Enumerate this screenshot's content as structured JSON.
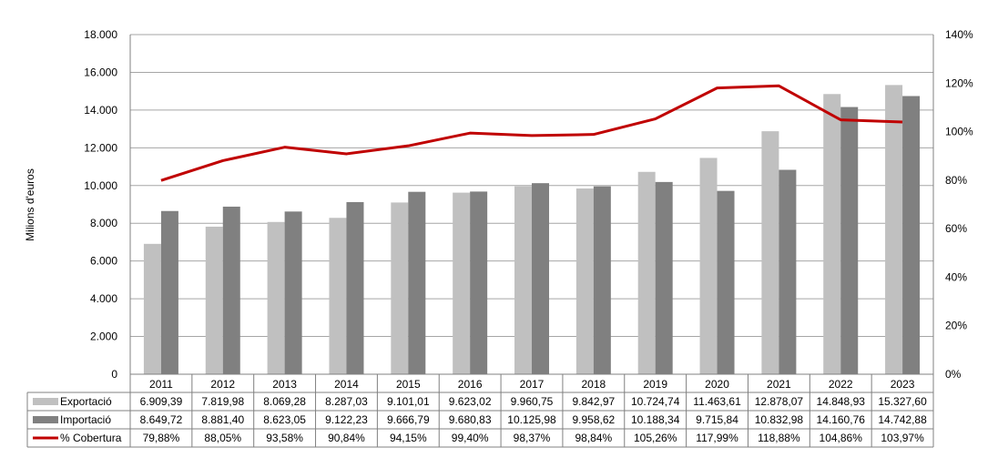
{
  "chart_data": {
    "type": "bar",
    "ylabel": "Milions d'euros",
    "ylim": [
      0,
      18000
    ],
    "y_ticks": [
      "0",
      "2.000",
      "4.000",
      "6.000",
      "8.000",
      "10.000",
      "12.000",
      "14.000",
      "16.000",
      "18.000"
    ],
    "y2lim": [
      0,
      140
    ],
    "y2_ticks": [
      "0%",
      "20%",
      "40%",
      "60%",
      "80%",
      "100%",
      "120%",
      "140%"
    ],
    "categories": [
      "2011",
      "2012",
      "2013",
      "2014",
      "2015",
      "2016",
      "2017",
      "2018",
      "2019",
      "2020",
      "2021",
      "2022",
      "2023"
    ],
    "series": [
      {
        "name": "Exportació",
        "kind": "bar",
        "color": "#c0c0c0",
        "values": [
          6909.39,
          7819.98,
          8069.28,
          8287.03,
          9101.01,
          9623.02,
          9960.75,
          9842.97,
          10724.74,
          11463.61,
          12878.07,
          14848.93,
          15327.6
        ],
        "labels": [
          "6.909,39",
          "7.819,98",
          "8.069,28",
          "8.287,03",
          "9.101,01",
          "9.623,02",
          "9.960,75",
          "9.842,97",
          "10.724,74",
          "11.463,61",
          "12.878,07",
          "14.848,93",
          "15.327,60"
        ]
      },
      {
        "name": "Importació",
        "kind": "bar",
        "color": "#808080",
        "values": [
          8649.72,
          8881.4,
          8623.05,
          9122.23,
          9666.79,
          9680.83,
          10125.98,
          9958.62,
          10188.34,
          9715.84,
          10832.98,
          14160.76,
          14742.88
        ],
        "labels": [
          "8.649,72",
          "8.881,40",
          "8.623,05",
          "9.122,23",
          "9.666,79",
          "9.680,83",
          "10.125,98",
          "9.958,62",
          "10.188,34",
          "9.715,84",
          "10.832,98",
          "14.160,76",
          "14.742,88"
        ]
      },
      {
        "name": "% Cobertura",
        "kind": "line",
        "axis": "secondary",
        "color": "#c00000",
        "values": [
          79.88,
          88.05,
          93.58,
          90.84,
          94.15,
          99.4,
          98.37,
          98.84,
          105.26,
          117.99,
          118.88,
          104.86,
          103.97
        ],
        "labels": [
          "79,88%",
          "88,05%",
          "93,58%",
          "90,84%",
          "94,15%",
          "99,40%",
          "98,37%",
          "98,84%",
          "105,26%",
          "117,99%",
          "118,88%",
          "104,86%",
          "103,97%"
        ]
      }
    ],
    "grid": true,
    "legend": "data-table-left"
  }
}
